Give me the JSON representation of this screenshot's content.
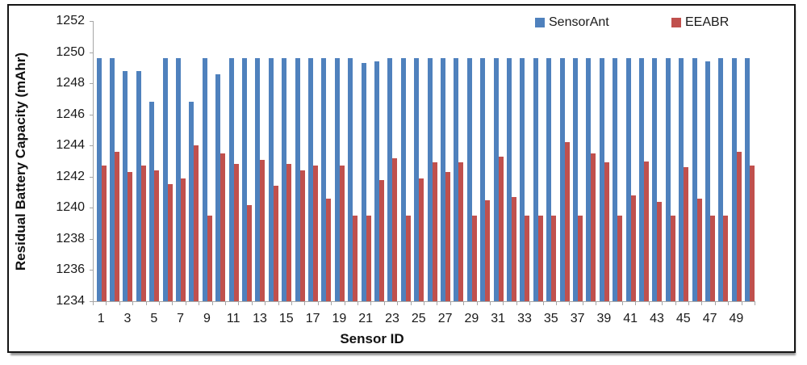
{
  "chart_data": {
    "type": "bar",
    "title": "",
    "xlabel": "Sensor ID",
    "ylabel": "Residual Battery Capacity (mAhr)",
    "ylim": [
      1234,
      1252
    ],
    "yticks": [
      1234,
      1236,
      1238,
      1240,
      1242,
      1244,
      1246,
      1248,
      1250,
      1252
    ],
    "xtick_labels": [
      "1",
      "3",
      "5",
      "7",
      "9",
      "11",
      "13",
      "15",
      "17",
      "19",
      "21",
      "23",
      "25",
      "27",
      "29",
      "31",
      "33",
      "35",
      "37",
      "39",
      "41",
      "43",
      "45",
      "47",
      "49"
    ],
    "categories": [
      1,
      2,
      3,
      4,
      5,
      6,
      7,
      8,
      9,
      10,
      11,
      12,
      13,
      14,
      15,
      16,
      17,
      18,
      19,
      20,
      21,
      22,
      23,
      24,
      25,
      26,
      27,
      28,
      29,
      30,
      31,
      32,
      33,
      34,
      35,
      36,
      37,
      38,
      39,
      40,
      41,
      42,
      43,
      44,
      45,
      46,
      47,
      48,
      49,
      50
    ],
    "grid": false,
    "legend_position": "top",
    "series": [
      {
        "name": "SensorAnt",
        "color": "#4F81BD",
        "values": [
          1249.6,
          1249.6,
          1248.8,
          1248.8,
          1246.8,
          1249.6,
          1249.6,
          1246.8,
          1249.6,
          1248.6,
          1249.6,
          1249.6,
          1249.6,
          1249.6,
          1249.6,
          1249.6,
          1249.6,
          1249.6,
          1249.6,
          1249.6,
          1249.3,
          1249.4,
          1249.6,
          1249.6,
          1249.6,
          1249.6,
          1249.6,
          1249.6,
          1249.6,
          1249.6,
          1249.6,
          1249.6,
          1249.6,
          1249.6,
          1249.6,
          1249.6,
          1249.6,
          1249.6,
          1249.6,
          1249.6,
          1249.6,
          1249.6,
          1249.6,
          1249.6,
          1249.6,
          1249.6,
          1249.4,
          1249.6,
          1249.6,
          1249.6
        ]
      },
      {
        "name": "EEABR",
        "color": "#C0504D",
        "values": [
          1242.7,
          1243.6,
          1242.3,
          1242.7,
          1242.4,
          1241.5,
          1241.9,
          1244.0,
          1239.5,
          1243.5,
          1242.8,
          1240.2,
          1243.1,
          1241.4,
          1242.8,
          1242.4,
          1242.7,
          1240.6,
          1242.7,
          1239.5,
          1239.5,
          1241.8,
          1243.2,
          1239.5,
          1241.9,
          1242.9,
          1242.3,
          1242.9,
          1239.5,
          1240.5,
          1243.3,
          1240.7,
          1239.5,
          1239.5,
          1239.5,
          1244.2,
          1239.5,
          1243.5,
          1242.9,
          1239.5,
          1240.8,
          1243.0,
          1240.4,
          1239.5,
          1242.6,
          1240.6,
          1239.5,
          1239.5,
          1243.6,
          1242.7
        ]
      }
    ]
  },
  "axis_style": {
    "line_color": "#a6a6a6",
    "text_color": "#1a1a1a"
  }
}
